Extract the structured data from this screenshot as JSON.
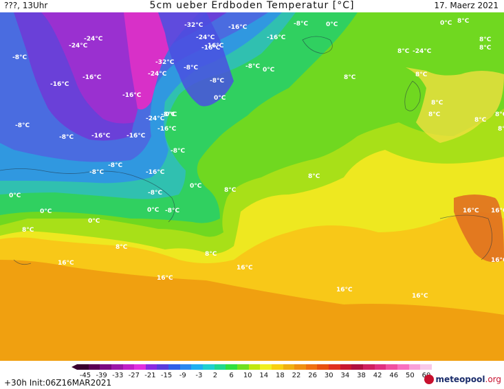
{
  "header": {
    "title": "5cm ueber Erdboden Temperatur [°C]",
    "left_label": "???, 13Uhr",
    "right_label": "17. Maerz 2021"
  },
  "map": {
    "temperature_labels": [
      {
        "text": "-32°C"
      },
      {
        "text": "-24°C"
      },
      {
        "text": "-24°C"
      },
      {
        "text": "-16°C"
      },
      {
        "text": "-16°C"
      },
      {
        "text": "-8°C"
      },
      {
        "text": "0°C"
      },
      {
        "text": "0°C"
      },
      {
        "text": "8°C"
      },
      {
        "text": "8°C"
      },
      {
        "text": "-24°C"
      },
      {
        "text": "-24°C"
      },
      {
        "text": "-16°C"
      },
      {
        "text": "-16°C"
      },
      {
        "text": "-8°C"
      },
      {
        "text": "-32°C"
      },
      {
        "text": "-24°C"
      },
      {
        "text": "-8°C"
      },
      {
        "text": "-8°C"
      },
      {
        "text": "0°C"
      },
      {
        "text": "8°C"
      },
      {
        "text": "8°C"
      },
      {
        "text": "-24°C"
      },
      {
        "text": "-16°C"
      },
      {
        "text": "-16°C"
      },
      {
        "text": "-16°C"
      },
      {
        "text": "-8°C"
      },
      {
        "text": "0°C"
      },
      {
        "text": "8°C"
      },
      {
        "text": "8°C"
      },
      {
        "text": "8°C"
      },
      {
        "text": "-8°C"
      },
      {
        "text": "-8°C"
      },
      {
        "text": "-8°C"
      },
      {
        "text": "-8°C"
      },
      {
        "text": "-16°C"
      },
      {
        "text": "-16°C"
      },
      {
        "text": "-8°C"
      },
      {
        "text": "-8°C"
      },
      {
        "text": "0°C"
      },
      {
        "text": "8°C"
      },
      {
        "text": "8°C"
      },
      {
        "text": "0°C"
      },
      {
        "text": "0°C"
      },
      {
        "text": "0°C"
      },
      {
        "text": "-8°C"
      },
      {
        "text": "0°C"
      },
      {
        "text": "8°C"
      },
      {
        "text": "8°C"
      },
      {
        "text": "16°C"
      },
      {
        "text": "16°C"
      },
      {
        "text": "16°C"
      },
      {
        "text": "16°C"
      },
      {
        "text": "16°C"
      },
      {
        "text": "16°C"
      },
      {
        "text": "16°C"
      },
      {
        "text": "16°C"
      },
      {
        "text": "-16°C"
      },
      {
        "text": "-8°C"
      },
      {
        "text": "8°C"
      },
      {
        "text": "8°C"
      },
      {
        "text": "8°C"
      },
      {
        "text": "8°C"
      },
      {
        "text": "0°C"
      },
      {
        "text": "-16°C"
      },
      {
        "text": "-24°C"
      },
      {
        "text": "8°C"
      }
    ]
  },
  "legend": {
    "ticks": [
      "-45",
      "-39",
      "-33",
      "-27",
      "-21",
      "-15",
      "-9",
      "-3",
      "2",
      "6",
      "10",
      "14",
      "18",
      "22",
      "26",
      "30",
      "34",
      "38",
      "42",
      "46",
      "50",
      "60"
    ],
    "colors": [
      "#3a0030",
      "#5a0055",
      "#7a0a82",
      "#9b18a8",
      "#c020c8",
      "#e030e0",
      "#8a2be2",
      "#5a3ddc",
      "#3060e8",
      "#2a88f0",
      "#20b0f0",
      "#20d0d0",
      "#20d890",
      "#30e040",
      "#70e020",
      "#c0e810",
      "#f0f020",
      "#f8d010",
      "#f0b010",
      "#f09010",
      "#f07010",
      "#e85010",
      "#e03020",
      "#c81830",
      "#b01040",
      "#d02060",
      "#e03080",
      "#f050a0",
      "#f870c0",
      "#f8a0d8",
      "#f8c8e8"
    ]
  },
  "footer": {
    "forecast_info": "+30h Init:06Z16MAR2021",
    "brand_name": "meteopool",
    "brand_tld": ".org"
  }
}
